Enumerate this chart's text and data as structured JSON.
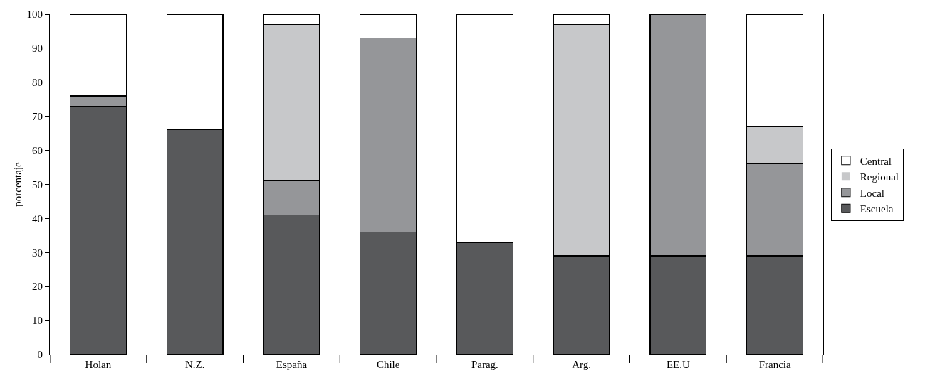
{
  "chart_data": {
    "type": "bar",
    "stacked": true,
    "ylabel": "porcentaje",
    "categories": [
      "Holan",
      "N.Z.",
      "España",
      "Chile",
      "Parag.",
      "Arg.",
      "EE.U",
      "Francia"
    ],
    "series": [
      {
        "name": "Escuela",
        "color": "#58595b",
        "values": [
          73,
          66,
          41,
          36,
          33,
          29,
          29,
          29
        ]
      },
      {
        "name": "Local",
        "color": "#959699",
        "values": [
          3,
          0,
          10,
          57,
          0,
          0,
          71,
          27
        ]
      },
      {
        "name": "Regional",
        "color": "#c7c8ca",
        "values": [
          0,
          0,
          46,
          0,
          0,
          68,
          0,
          11
        ]
      },
      {
        "name": "Central",
        "color": "#ffffff",
        "values": [
          24,
          34,
          3,
          7,
          67,
          3,
          0,
          33
        ]
      }
    ],
    "ylim": [
      0,
      100
    ],
    "yticks": [
      0,
      10,
      20,
      30,
      40,
      50,
      60,
      70,
      80,
      90,
      100
    ],
    "grid": false,
    "legend": "right"
  }
}
